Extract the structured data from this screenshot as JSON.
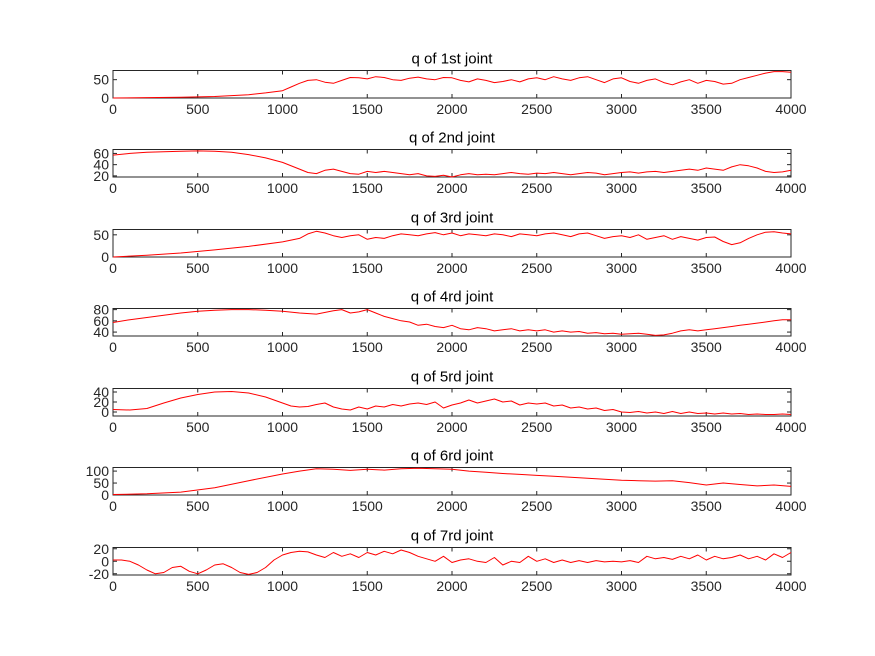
{
  "chart_data": [
    {
      "type": "line",
      "title": "q of 1st joint",
      "xlim": [
        0,
        4000
      ],
      "ylim": [
        0,
        75
      ],
      "xticks": [
        "0",
        "500",
        "1000",
        "1500",
        "2000",
        "2500",
        "3000",
        "3500",
        "4000"
      ],
      "yticks": [
        "0",
        "50"
      ],
      "ytick_values": [
        0,
        50
      ],
      "color": "#ff0000",
      "series": [
        {
          "x": [
            0,
            200,
            400,
            600,
            800,
            900,
            1000,
            1050,
            1100,
            1150,
            1200,
            1250,
            1300,
            1350,
            1400,
            1450,
            1500,
            1550,
            1600,
            1650,
            1700,
            1750,
            1800,
            1850,
            1900,
            1950,
            2000,
            2050,
            2100,
            2150,
            2200,
            2250,
            2300,
            2350,
            2400,
            2450,
            2500,
            2550,
            2600,
            2650,
            2700,
            2750,
            2800,
            2850,
            2900,
            2950,
            3000,
            3050,
            3100,
            3150,
            3200,
            3250,
            3300,
            3350,
            3400,
            3450,
            3500,
            3550,
            3600,
            3650,
            3700,
            3750,
            3800,
            3850,
            3900,
            3950,
            4000
          ],
          "y": [
            0,
            1,
            2,
            4,
            9,
            14,
            20,
            30,
            40,
            48,
            50,
            43,
            40,
            48,
            56,
            55,
            52,
            58,
            56,
            50,
            48,
            54,
            57,
            52,
            50,
            56,
            55,
            48,
            44,
            52,
            48,
            42,
            45,
            50,
            44,
            52,
            55,
            50,
            58,
            52,
            48,
            55,
            58,
            50,
            42,
            52,
            55,
            45,
            40,
            48,
            52,
            42,
            36,
            44,
            50,
            40,
            48,
            45,
            38,
            40,
            50,
            56,
            62,
            68,
            72,
            72,
            70
          ]
        }
      ]
    },
    {
      "type": "line",
      "title": "q of 2nd joint",
      "xlim": [
        0,
        4000
      ],
      "ylim": [
        18,
        67
      ],
      "xticks": [
        "0",
        "500",
        "1000",
        "1500",
        "2000",
        "2500",
        "3000",
        "3500",
        "4000"
      ],
      "yticks": [
        "20",
        "40",
        "60"
      ],
      "ytick_values": [
        20,
        40,
        60
      ],
      "color": "#ff0000",
      "series": [
        {
          "x": [
            0,
            100,
            200,
            300,
            400,
            500,
            600,
            700,
            800,
            900,
            1000,
            1100,
            1150,
            1200,
            1250,
            1300,
            1350,
            1400,
            1450,
            1500,
            1550,
            1600,
            1650,
            1700,
            1750,
            1800,
            1850,
            1900,
            1950,
            2000,
            2050,
            2100,
            2150,
            2200,
            2250,
            2300,
            2350,
            2400,
            2450,
            2500,
            2550,
            2600,
            2650,
            2700,
            2750,
            2800,
            2850,
            2900,
            2950,
            3000,
            3050,
            3100,
            3150,
            3200,
            3250,
            3300,
            3350,
            3400,
            3450,
            3500,
            3550,
            3600,
            3650,
            3700,
            3750,
            3800,
            3850,
            3900,
            3950,
            4000
          ],
          "y": [
            57,
            60,
            62,
            63,
            64,
            64.5,
            64,
            62,
            58,
            52,
            44,
            32,
            26,
            24,
            30,
            32,
            28,
            24,
            23,
            28,
            26,
            28,
            26,
            24,
            22,
            24,
            20,
            19,
            21,
            18,
            22,
            24,
            22,
            23,
            22,
            24,
            26,
            24,
            23,
            25,
            24,
            26,
            24,
            22,
            24,
            26,
            25,
            22,
            24,
            26,
            27,
            25,
            27,
            28,
            26,
            28,
            30,
            32,
            30,
            34,
            32,
            30,
            36,
            40,
            38,
            34,
            28,
            26,
            27,
            30
          ]
        }
      ]
    },
    {
      "type": "line",
      "title": "q of 3rd joint",
      "xlim": [
        0,
        4000
      ],
      "ylim": [
        0,
        62
      ],
      "xticks": [
        "0",
        "500",
        "1000",
        "1500",
        "2000",
        "2500",
        "3000",
        "3500",
        "4000"
      ],
      "yticks": [
        "0",
        "50"
      ],
      "ytick_values": [
        0,
        50
      ],
      "color": "#ff0000",
      "series": [
        {
          "x": [
            0,
            200,
            400,
            600,
            800,
            1000,
            1100,
            1150,
            1200,
            1250,
            1300,
            1350,
            1400,
            1450,
            1500,
            1550,
            1600,
            1650,
            1700,
            1750,
            1800,
            1850,
            1900,
            1950,
            2000,
            2050,
            2100,
            2150,
            2200,
            2250,
            2300,
            2350,
            2400,
            2450,
            2500,
            2550,
            2600,
            2650,
            2700,
            2750,
            2800,
            2850,
            2900,
            2950,
            3000,
            3050,
            3100,
            3150,
            3200,
            3250,
            3300,
            3350,
            3400,
            3450,
            3500,
            3550,
            3600,
            3650,
            3700,
            3750,
            3800,
            3850,
            3900,
            3950,
            4000
          ],
          "y": [
            0,
            4,
            9,
            16,
            24,
            34,
            42,
            52,
            58,
            54,
            48,
            44,
            48,
            50,
            40,
            44,
            42,
            48,
            52,
            50,
            48,
            52,
            55,
            50,
            54,
            48,
            52,
            50,
            48,
            52,
            50,
            46,
            52,
            50,
            48,
            52,
            54,
            50,
            46,
            52,
            54,
            48,
            42,
            46,
            48,
            44,
            50,
            40,
            44,
            48,
            40,
            46,
            42,
            38,
            44,
            45,
            35,
            28,
            32,
            42,
            50,
            56,
            57,
            54,
            52
          ]
        }
      ]
    },
    {
      "type": "line",
      "title": "q of 4rd joint",
      "xlim": [
        0,
        4000
      ],
      "ylim": [
        33,
        82
      ],
      "xticks": [
        "0",
        "500",
        "1000",
        "1500",
        "2000",
        "2500",
        "3000",
        "3500",
        "4000"
      ],
      "yticks": [
        "40",
        "60",
        "80"
      ],
      "ytick_values": [
        40,
        60,
        80
      ],
      "color": "#ff0000",
      "series": [
        {
          "x": [
            0,
            100,
            200,
            300,
            400,
            500,
            600,
            700,
            800,
            900,
            1000,
            1100,
            1200,
            1300,
            1350,
            1400,
            1450,
            1500,
            1550,
            1600,
            1650,
            1700,
            1750,
            1800,
            1850,
            1900,
            1950,
            2000,
            2050,
            2100,
            2150,
            2200,
            2250,
            2300,
            2350,
            2400,
            2450,
            2500,
            2550,
            2600,
            2650,
            2700,
            2750,
            2800,
            2850,
            2900,
            2950,
            3000,
            3050,
            3100,
            3150,
            3200,
            3250,
            3300,
            3350,
            3400,
            3450,
            3500,
            3550,
            3600,
            3650,
            3700,
            3750,
            3800,
            3850,
            3900,
            3950,
            4000
          ],
          "y": [
            57,
            62,
            66,
            70,
            74,
            77,
            79,
            80,
            80,
            79,
            77,
            74,
            72,
            78,
            80,
            74,
            76,
            80,
            74,
            68,
            64,
            60,
            58,
            52,
            54,
            50,
            48,
            52,
            46,
            44,
            48,
            46,
            42,
            44,
            46,
            42,
            44,
            42,
            44,
            40,
            42,
            40,
            41,
            38,
            39,
            37,
            38,
            36,
            37,
            38,
            36,
            34,
            35,
            38,
            42,
            44,
            42,
            44,
            46,
            48,
            50,
            52,
            54,
            56,
            58,
            60,
            62,
            62
          ]
        }
      ]
    },
    {
      "type": "line",
      "title": "q of 5rd joint",
      "xlim": [
        0,
        4000
      ],
      "ylim": [
        -8,
        47
      ],
      "xticks": [
        "0",
        "500",
        "1000",
        "1500",
        "2000",
        "2500",
        "3000",
        "3500",
        "4000"
      ],
      "yticks": [
        "0",
        "20",
        "40"
      ],
      "ytick_values": [
        0,
        20,
        40
      ],
      "color": "#ff0000",
      "series": [
        {
          "x": [
            0,
            100,
            200,
            300,
            400,
            500,
            600,
            700,
            800,
            900,
            1000,
            1050,
            1100,
            1150,
            1200,
            1250,
            1300,
            1350,
            1400,
            1450,
            1500,
            1550,
            1600,
            1650,
            1700,
            1750,
            1800,
            1850,
            1900,
            1950,
            2000,
            2050,
            2100,
            2150,
            2200,
            2250,
            2300,
            2350,
            2400,
            2450,
            2500,
            2550,
            2600,
            2650,
            2700,
            2750,
            2800,
            2850,
            2900,
            2950,
            3000,
            3050,
            3100,
            3150,
            3200,
            3250,
            3300,
            3350,
            3400,
            3450,
            3500,
            3550,
            3600,
            3650,
            3700,
            3750,
            3800,
            3850,
            3900,
            3950,
            4000
          ],
          "y": [
            5,
            4,
            7,
            18,
            28,
            35,
            40,
            41,
            38,
            30,
            18,
            12,
            10,
            11,
            15,
            18,
            10,
            6,
            4,
            10,
            6,
            12,
            10,
            15,
            12,
            16,
            18,
            15,
            20,
            8,
            14,
            18,
            24,
            18,
            22,
            26,
            20,
            22,
            14,
            18,
            16,
            18,
            12,
            14,
            8,
            10,
            6,
            8,
            3,
            5,
            0,
            -1,
            1,
            -2,
            0,
            -3,
            1,
            -3,
            0,
            -3,
            -2,
            -4,
            -2,
            -4,
            -3,
            -5,
            -4,
            -5,
            -5,
            -4,
            -5
          ]
        }
      ]
    },
    {
      "type": "line",
      "title": "q of 6rd joint",
      "xlim": [
        0,
        4000
      ],
      "ylim": [
        0,
        115
      ],
      "xticks": [
        "0",
        "500",
        "1000",
        "1500",
        "2000",
        "2500",
        "3000",
        "3500",
        "4000"
      ],
      "yticks": [
        "0",
        "50",
        "100"
      ],
      "ytick_values": [
        0,
        50,
        100
      ],
      "color": "#ff0000",
      "series": [
        {
          "x": [
            0,
            200,
            400,
            600,
            800,
            1000,
            1100,
            1200,
            1300,
            1400,
            1500,
            1600,
            1700,
            1800,
            1900,
            2000,
            2100,
            2200,
            2300,
            2400,
            2500,
            2600,
            2700,
            2800,
            2900,
            3000,
            3100,
            3200,
            3300,
            3400,
            3500,
            3600,
            3700,
            3800,
            3900,
            4000
          ],
          "y": [
            2,
            5,
            12,
            30,
            60,
            88,
            100,
            110,
            108,
            103,
            108,
            104,
            110,
            112,
            110,
            108,
            100,
            95,
            90,
            86,
            82,
            78,
            74,
            70,
            66,
            62,
            60,
            58,
            60,
            52,
            42,
            50,
            44,
            38,
            42,
            36
          ]
        }
      ]
    },
    {
      "type": "line",
      "title": "q of 7rd joint",
      "xlim": [
        0,
        4000
      ],
      "ylim": [
        -22,
        22
      ],
      "xticks": [
        "0",
        "500",
        "1000",
        "1500",
        "2000",
        "2500",
        "3000",
        "3500",
        "4000"
      ],
      "yticks": [
        "-20",
        "0",
        "20"
      ],
      "ytick_values": [
        -20,
        0,
        20
      ],
      "color": "#ff0000",
      "series": [
        {
          "x": [
            0,
            50,
            100,
            150,
            200,
            250,
            300,
            350,
            400,
            450,
            500,
            550,
            600,
            650,
            700,
            750,
            800,
            850,
            900,
            950,
            1000,
            1050,
            1100,
            1150,
            1200,
            1250,
            1300,
            1350,
            1400,
            1450,
            1500,
            1550,
            1600,
            1650,
            1700,
            1750,
            1800,
            1850,
            1900,
            1950,
            2000,
            2050,
            2100,
            2150,
            2200,
            2250,
            2300,
            2350,
            2400,
            2450,
            2500,
            2550,
            2600,
            2650,
            2700,
            2750,
            2800,
            2850,
            2900,
            2950,
            3000,
            3050,
            3100,
            3150,
            3200,
            3250,
            3300,
            3350,
            3400,
            3450,
            3500,
            3550,
            3600,
            3650,
            3700,
            3750,
            3800,
            3850,
            3900,
            3950,
            4000
          ],
          "y": [
            2,
            2,
            0,
            -6,
            -14,
            -20,
            -18,
            -10,
            -8,
            -16,
            -20,
            -14,
            -6,
            -4,
            -10,
            -18,
            -21,
            -18,
            -10,
            2,
            10,
            14,
            16,
            15,
            10,
            6,
            14,
            8,
            12,
            6,
            14,
            10,
            16,
            12,
            18,
            14,
            8,
            4,
            0,
            8,
            -2,
            2,
            4,
            0,
            -2,
            6,
            -6,
            0,
            -2,
            8,
            0,
            4,
            -2,
            2,
            -2,
            1,
            -2,
            1,
            -1,
            0,
            -1,
            1,
            -2,
            8,
            4,
            6,
            3,
            8,
            4,
            10,
            2,
            8,
            4,
            6,
            10,
            4,
            8,
            2,
            12,
            6,
            14
          ]
        }
      ]
    }
  ]
}
